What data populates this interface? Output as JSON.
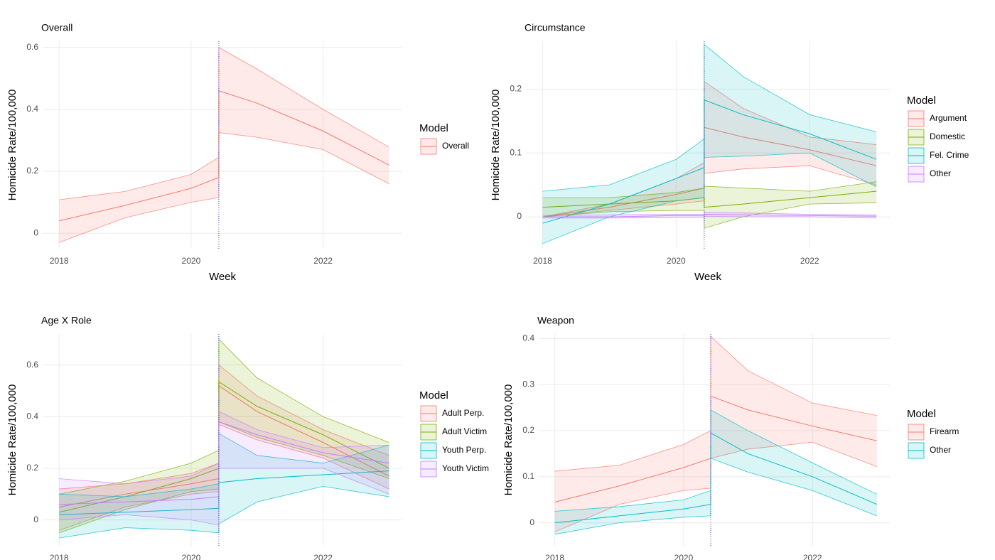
{
  "chart_data": [
    {
      "type": "line",
      "title": "Overall",
      "y_label": "Homicide Rate/100,000",
      "x_label": "Week",
      "legend_title": "Model",
      "xlim": [
        2017.75,
        2023.2
      ],
      "xticks": [
        2018,
        2020,
        2022
      ],
      "ylim": [
        -0.05,
        0.62
      ],
      "yticks": [
        0.0,
        0.2,
        0.4,
        0.6
      ],
      "grid": true,
      "interruption": 2020.42,
      "x": [
        2018,
        2019,
        2020,
        2020.42,
        2020.42,
        2021,
        2022,
        2023
      ],
      "series": [
        {
          "name": "Overall",
          "color": "#F8766D",
          "values": [
            0.04,
            0.09,
            0.145,
            0.18,
            0.46,
            0.42,
            0.33,
            0.22
          ],
          "lower": [
            -0.03,
            0.05,
            0.1,
            0.115,
            0.325,
            0.31,
            0.27,
            0.16
          ],
          "upper": [
            0.108,
            0.135,
            0.19,
            0.245,
            0.6,
            0.53,
            0.4,
            0.278
          ]
        }
      ]
    },
    {
      "type": "line",
      "title": "Circumstance",
      "y_label": "Homicide Rate/100,000",
      "x_label": "Week",
      "legend_title": "Model",
      "xlim": [
        2017.75,
        2023.2
      ],
      "xticks": [
        2018,
        2020,
        2022
      ],
      "ylim": [
        -0.05,
        0.275
      ],
      "yticks": [
        0.0,
        0.1,
        0.2
      ],
      "grid": true,
      "interruption": 2020.42,
      "x": [
        2018,
        2019,
        2020,
        2020.42,
        2020.42,
        2021,
        2022,
        2023
      ],
      "series": [
        {
          "name": "Argument",
          "color": "#F8766D",
          "values": [
            0.0,
            0.015,
            0.035,
            0.045,
            0.14,
            0.125,
            0.105,
            0.08
          ],
          "lower": [
            0.0,
            0.01,
            0.02,
            0.025,
            0.068,
            0.075,
            0.08,
            0.05
          ],
          "upper": [
            0.0,
            0.02,
            0.06,
            0.085,
            0.212,
            0.17,
            0.125,
            0.113
          ]
        },
        {
          "name": "Domestic",
          "color": "#7CAE00",
          "values": [
            0.015,
            0.02,
            0.025,
            0.03,
            0.015,
            0.02,
            0.03,
            0.04
          ],
          "lower": [
            0.0,
            0.008,
            0.01,
            0.01,
            -0.018,
            0.0,
            0.02,
            0.022
          ],
          "upper": [
            0.03,
            0.03,
            0.038,
            0.045,
            0.048,
            0.045,
            0.04,
            0.055
          ]
        },
        {
          "name": "Fel. Crime",
          "color": "#00BFC4",
          "values": [
            -0.01,
            0.02,
            0.06,
            0.077,
            0.183,
            0.16,
            0.13,
            0.09
          ],
          "lower": [
            -0.042,
            0.0,
            0.025,
            0.03,
            0.093,
            0.095,
            0.1,
            0.047
          ],
          "upper": [
            0.04,
            0.05,
            0.09,
            0.122,
            0.27,
            0.22,
            0.16,
            0.133
          ]
        },
        {
          "name": "Other",
          "color": "#C77CFF",
          "values": [
            0.0,
            0.0,
            0.002,
            0.002,
            0.004,
            0.003,
            0.002,
            0.001
          ],
          "lower": [
            -0.002,
            -0.002,
            -0.001,
            -0.001,
            0.001,
            0.0,
            0.0,
            -0.002
          ],
          "upper": [
            0.002,
            0.003,
            0.004,
            0.004,
            0.007,
            0.006,
            0.004,
            0.003
          ]
        }
      ]
    },
    {
      "type": "line",
      "title": "Age X Role",
      "y_label": "Homicide Rate/100,000",
      "legend_title": "Model",
      "xlim": [
        2017.75,
        2023.2
      ],
      "xticks": [
        2018,
        2020,
        2022
      ],
      "ylim": [
        -0.1,
        0.72
      ],
      "yticks": [
        0.0,
        0.2,
        0.4,
        0.6
      ],
      "grid": true,
      "interruption": 2020.42,
      "x": [
        2018,
        2019,
        2020,
        2020.42,
        2020.42,
        2021,
        2022,
        2023
      ],
      "series": [
        {
          "name": "Adult Perp.",
          "color": "#F8766D",
          "values": [
            0.05,
            0.1,
            0.14,
            0.16,
            0.52,
            0.42,
            0.3,
            0.17
          ],
          "lower": [
            -0.04,
            0.05,
            0.1,
            0.11,
            0.37,
            0.31,
            0.24,
            0.12
          ],
          "upper": [
            0.12,
            0.14,
            0.18,
            0.22,
            0.6,
            0.48,
            0.35,
            0.25
          ]
        },
        {
          "name": "Adult Victim",
          "color": "#7CAE00",
          "values": [
            0.03,
            0.09,
            0.16,
            0.2,
            0.535,
            0.44,
            0.33,
            0.2
          ],
          "lower": [
            -0.05,
            0.04,
            0.11,
            0.12,
            0.38,
            0.32,
            0.25,
            0.16
          ],
          "upper": [
            0.1,
            0.15,
            0.22,
            0.27,
            0.7,
            0.55,
            0.4,
            0.3
          ]
        },
        {
          "name": "Youth Perp.",
          "color": "#00BFC4",
          "values": [
            0.02,
            0.03,
            0.04,
            0.045,
            0.145,
            0.16,
            0.175,
            0.19
          ],
          "lower": [
            -0.07,
            -0.03,
            -0.04,
            -0.05,
            -0.015,
            0.07,
            0.13,
            0.09
          ],
          "upper": [
            0.1,
            0.09,
            0.12,
            0.14,
            0.335,
            0.25,
            0.22,
            0.29
          ]
        },
        {
          "name": "Youth Victim",
          "color": "#C77CFF",
          "values": [
            0.06,
            0.07,
            0.08,
            0.09,
            0.38,
            0.33,
            0.26,
            0.22
          ],
          "lower": [
            0.0,
            0.02,
            0.0,
            -0.02,
            0.2,
            0.2,
            0.2,
            0.1
          ],
          "upper": [
            0.16,
            0.14,
            0.17,
            0.22,
            0.42,
            0.35,
            0.28,
            0.29
          ]
        }
      ]
    },
    {
      "type": "line",
      "title": "Weapon",
      "y_label": "Homicide Rate/100,000",
      "legend_title": "Model",
      "xlim": [
        2017.75,
        2023.2
      ],
      "xticks": [
        2018,
        2020,
        2022
      ],
      "ylim": [
        -0.05,
        0.41
      ],
      "yticks": [
        0.0,
        0.1,
        0.2,
        0.3,
        0.4
      ],
      "grid": true,
      "interruption": 2020.42,
      "x": [
        2018,
        2019,
        2020,
        2020.42,
        2020.42,
        2021,
        2022,
        2023
      ],
      "series": [
        {
          "name": "Firearm",
          "color": "#F8766D",
          "values": [
            0.045,
            0.08,
            0.12,
            0.14,
            0.275,
            0.245,
            0.21,
            0.178
          ],
          "lower": [
            -0.02,
            0.04,
            0.07,
            0.075,
            0.14,
            0.16,
            0.175,
            0.122
          ],
          "upper": [
            0.112,
            0.125,
            0.17,
            0.2,
            0.405,
            0.33,
            0.26,
            0.233
          ]
        },
        {
          "name": "Other",
          "color": "#00BFC4",
          "values": [
            0.0,
            0.015,
            0.03,
            0.04,
            0.195,
            0.15,
            0.1,
            0.04
          ],
          "lower": [
            -0.025,
            0.0,
            0.012,
            0.015,
            0.14,
            0.11,
            0.07,
            0.015
          ],
          "upper": [
            0.025,
            0.035,
            0.05,
            0.07,
            0.245,
            0.2,
            0.13,
            0.062
          ]
        }
      ]
    }
  ]
}
